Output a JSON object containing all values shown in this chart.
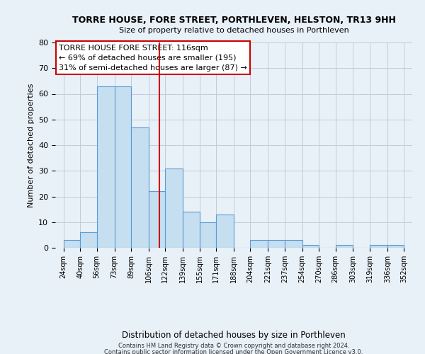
{
  "title": "TORRE HOUSE, FORE STREET, PORTHLEVEN, HELSTON, TR13 9HH",
  "subtitle": "Size of property relative to detached houses in Porthleven",
  "xlabel": "Distribution of detached houses by size in Porthleven",
  "ylabel": "Number of detached properties",
  "bar_left_edges": [
    24,
    40,
    56,
    73,
    89,
    106,
    122,
    139,
    155,
    171,
    188,
    204,
    221,
    237,
    254,
    270,
    286,
    303,
    319,
    336
  ],
  "bar_heights": [
    3,
    6,
    63,
    63,
    47,
    22,
    31,
    14,
    10,
    13,
    0,
    3,
    3,
    3,
    1,
    0,
    1,
    0,
    1,
    1
  ],
  "bar_widths": [
    16,
    16,
    17,
    16,
    17,
    16,
    17,
    16,
    16,
    17,
    16,
    17,
    16,
    17,
    16,
    16,
    17,
    16,
    17,
    16
  ],
  "tick_labels": [
    "24sqm",
    "40sqm",
    "56sqm",
    "73sqm",
    "89sqm",
    "106sqm",
    "122sqm",
    "139sqm",
    "155sqm",
    "171sqm",
    "188sqm",
    "204sqm",
    "221sqm",
    "237sqm",
    "254sqm",
    "270sqm",
    "286sqm",
    "303sqm",
    "319sqm",
    "336sqm",
    "352sqm"
  ],
  "tick_positions": [
    24,
    40,
    56,
    73,
    89,
    106,
    122,
    139,
    155,
    171,
    188,
    204,
    221,
    237,
    254,
    270,
    286,
    303,
    319,
    336,
    352
  ],
  "bar_color": "#c5dff0",
  "bar_edge_color": "#5b9bd5",
  "vline_x": 116,
  "vline_color": "#cc0000",
  "ylim": [
    0,
    80
  ],
  "yticks": [
    0,
    10,
    20,
    30,
    40,
    50,
    60,
    70,
    80
  ],
  "xlim_min": 16,
  "xlim_max": 360,
  "annotation_title": "TORRE HOUSE FORE STREET: 116sqm",
  "annotation_line1": "← 69% of detached houses are smaller (195)",
  "annotation_line2": "31% of semi-detached houses are larger (87) →",
  "footer_line1": "Contains HM Land Registry data © Crown copyright and database right 2024.",
  "footer_line2": "Contains public sector information licensed under the Open Government Licence v3.0.",
  "background_color": "#e8f0f8",
  "axes_bg_color": "#e8f0f8",
  "grid_color": "#c0ccd8"
}
